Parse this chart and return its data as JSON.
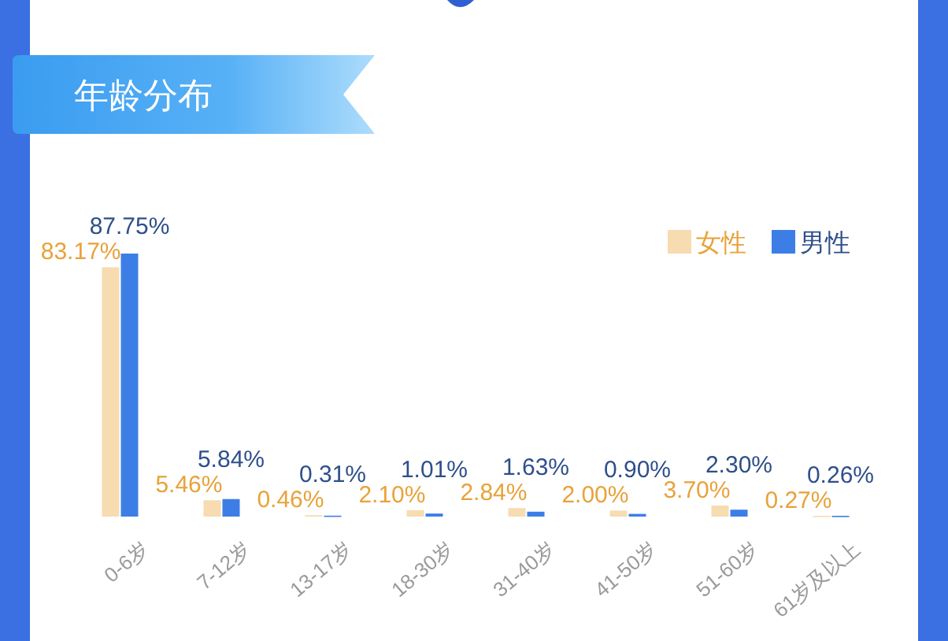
{
  "chart_data": {
    "type": "bar",
    "title": "年龄分布",
    "categories": [
      "0-6岁",
      "7-12岁",
      "13-17岁",
      "18-30岁",
      "31-40岁",
      "41-50岁",
      "51-60岁",
      "61岁及以上"
    ],
    "series": [
      {
        "name": "女性",
        "color": "#f6dcb0",
        "values": [
          83.17,
          5.46,
          0.46,
          2.1,
          2.84,
          2.0,
          3.7,
          0.27
        ],
        "value_labels": [
          "83.17%",
          "5.46%",
          "0.46%",
          "2.10%",
          "2.84%",
          "2.00%",
          "3.70%",
          "0.27%"
        ]
      },
      {
        "name": "男性",
        "color": "#3d7ee6",
        "values": [
          87.75,
          5.84,
          0.31,
          1.01,
          1.63,
          0.9,
          2.3,
          0.26
        ],
        "value_labels": [
          "87.75%",
          "5.84%",
          "0.31%",
          "1.01%",
          "1.63%",
          "0.90%",
          "2.30%",
          "0.26%"
        ]
      }
    ],
    "legend": "top right"
  }
}
